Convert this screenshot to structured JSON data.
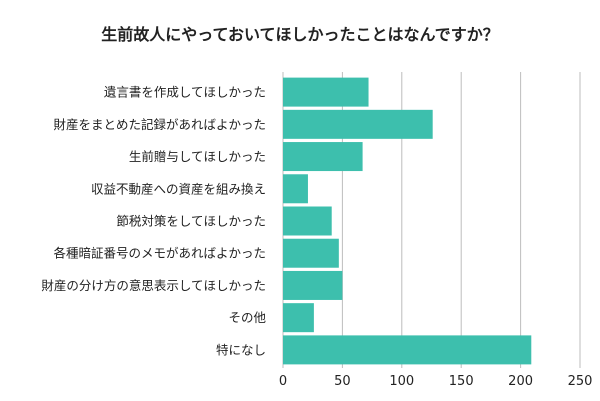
{
  "chart_data": {
    "type": "bar",
    "orientation": "horizontal",
    "title": "生前故人にやっておいてほしかったことはなんですか？",
    "categories": [
      "遺言書を作成してほしかった",
      "財産をまとめた記録があればよかった",
      "生前贈与してほしかった",
      "収益不動産への資産を組み換え",
      "節税対策をしてほしかった",
      "各種暗証番号のメモがあればよかった",
      "財産の分け方の意思表示してほしかった",
      "その他",
      "特になし"
    ],
    "values": [
      72,
      126,
      67,
      21,
      41,
      47,
      50,
      26,
      209
    ],
    "xlim": [
      0,
      250
    ],
    "xticks": [
      "0",
      "50",
      "100",
      "150",
      "200",
      "250"
    ],
    "grid": "vertical",
    "bar_color": "#3dbfad",
    "grid_color": "#bdbdbd"
  }
}
